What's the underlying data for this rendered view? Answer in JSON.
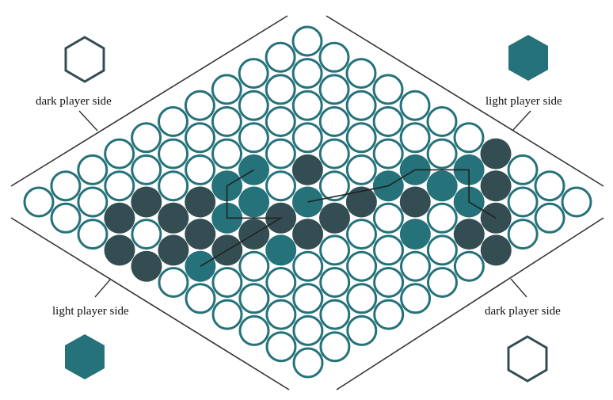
{
  "labels": {
    "top_left": "dark player side",
    "top_right": "light player side",
    "bottom_left": "light player side",
    "bottom_right": "dark player side"
  },
  "colors": {
    "dark": "#344d52",
    "light": "#25727a",
    "empty_stroke": "#25727a",
    "background": "#ffffff",
    "frame": "#333333"
  },
  "corner_markers": {
    "top_left": {
      "icon": "hexagon-outline-icon",
      "style": "dark-outline"
    },
    "top_right": {
      "icon": "hexagon-filled-icon",
      "style": "light-filled"
    },
    "bottom_left": {
      "icon": "hexagon-filled-icon",
      "style": "light-filled"
    },
    "bottom_right": {
      "icon": "hexagon-outline-icon",
      "style": "dark-outline"
    }
  },
  "board": {
    "columns": 11,
    "rows": 11,
    "dark_stones": [
      [
        7,
        0
      ],
      [
        8,
        1
      ],
      [
        9,
        2
      ],
      [
        7,
        3
      ],
      [
        10,
        3
      ],
      [
        4,
        4
      ],
      [
        6,
        5
      ],
      [
        9,
        3
      ],
      [
        2,
        8
      ],
      [
        3,
        7
      ],
      [
        3,
        8
      ],
      [
        3,
        10
      ],
      [
        2,
        9
      ],
      [
        4,
        8
      ],
      [
        4,
        10
      ],
      [
        5,
        6
      ],
      [
        6,
        4
      ],
      [
        5,
        7
      ],
      [
        6,
        5
      ],
      [
        6,
        6
      ],
      [
        4,
        9
      ],
      [
        5,
        8
      ]
    ],
    "light_stones": [
      [
        6,
        2
      ],
      [
        7,
        1
      ],
      [
        8,
        2
      ],
      [
        7,
        2
      ],
      [
        8,
        4
      ],
      [
        9,
        2
      ],
      [
        3,
        5
      ],
      [
        6,
        3
      ],
      [
        4,
        6
      ],
      [
        6,
        4
      ],
      [
        5,
        5
      ],
      [
        3,
        6
      ],
      [
        4,
        7
      ],
      [
        6,
        3
      ],
      [
        6,
        4
      ],
      [
        5,
        6
      ],
      [
        5,
        9
      ],
      [
        6,
        7
      ]
    ],
    "paths": [
      [
        [
          5,
          5
        ],
        [
          6,
          3
        ],
        [
          6,
          2
        ],
        [
          7,
          1
        ],
        [
          8,
          2
        ],
        [
          9,
          2
        ]
      ],
      [
        [
          3,
          5
        ],
        [
          3,
          6
        ],
        [
          4,
          7
        ],
        [
          5,
          6
        ],
        [
          5,
          9
        ]
      ]
    ]
  }
}
